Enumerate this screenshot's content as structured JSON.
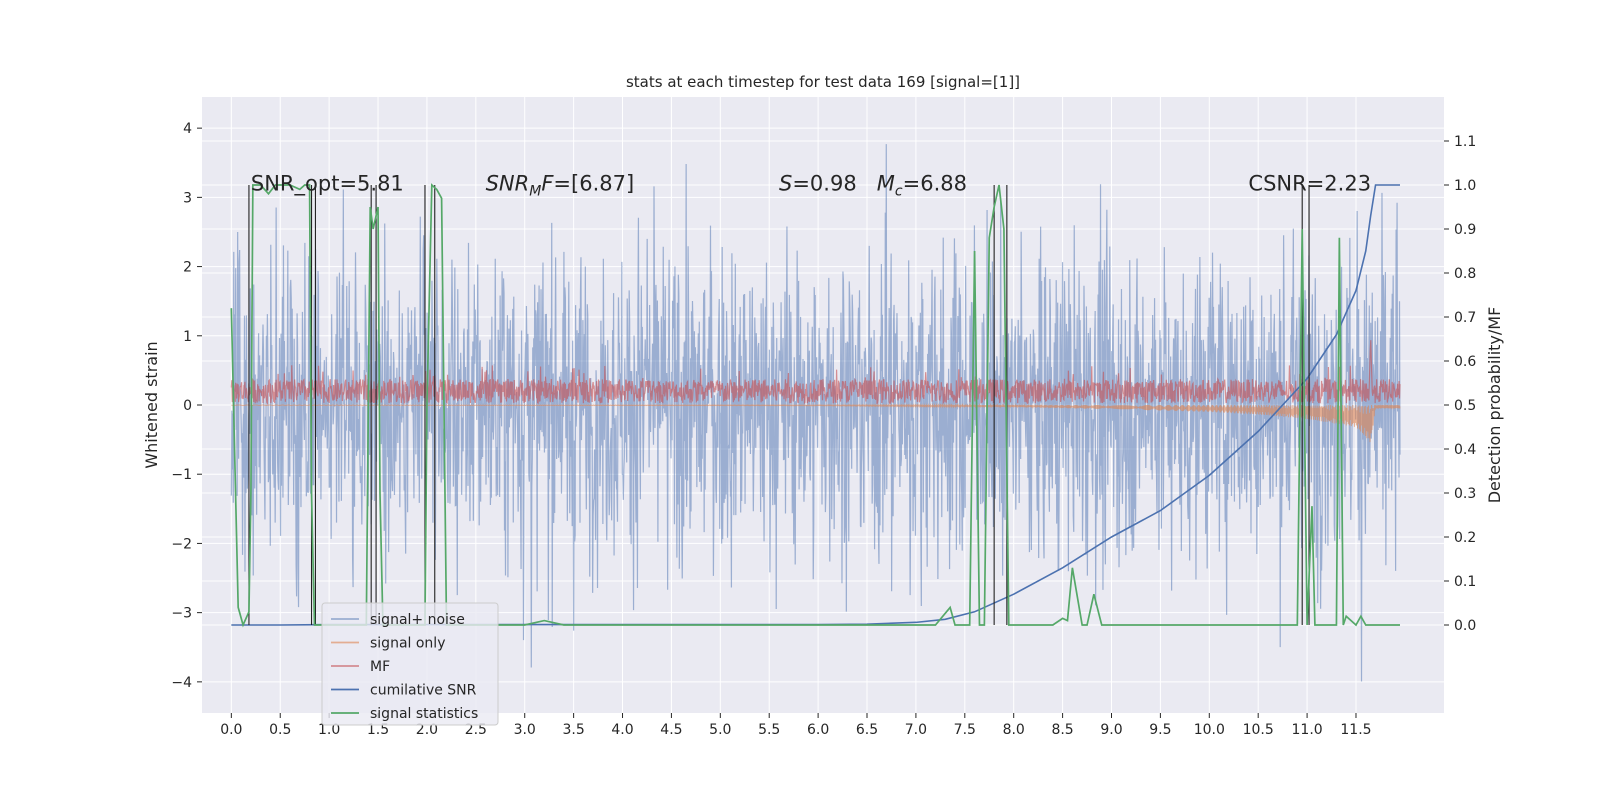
{
  "chart_data": {
    "type": "line",
    "title": "stats at each timestep for test data 169 [signal=[1]]",
    "xlabel": "",
    "ylabel": "Whitened strain",
    "ylabel_right": "Detection probability/MF",
    "xlim": [
      -0.3,
      12.4
    ],
    "ylim": [
      -4.45,
      4.45
    ],
    "ylim_right": [
      -0.2,
      1.2
    ],
    "x_ticks": [
      0.0,
      0.5,
      1.0,
      1.5,
      2.0,
      2.5,
      3.0,
      3.5,
      4.0,
      4.5,
      5.0,
      5.5,
      6.0,
      6.5,
      7.0,
      7.5,
      8.0,
      8.5,
      9.0,
      9.5,
      10.0,
      10.5,
      11.0,
      11.5
    ],
    "x_tick_labels": [
      "0.0",
      "0.5",
      "1.0",
      "1.5",
      "2.0",
      "2.5",
      "3.0",
      "3.5",
      "4.0",
      "4.5",
      "5.0",
      "5.5",
      "6.0",
      "6.5",
      "7.0",
      "7.5",
      "8.0",
      "8.5",
      "9.0",
      "9.5",
      "10.0",
      "10.5",
      "11.0",
      "11.5"
    ],
    "y_ticks": [
      -4,
      -3,
      -2,
      -1,
      0,
      1,
      2,
      3,
      4
    ],
    "y_tick_labels": [
      "−4",
      "−3",
      "−2",
      "−1",
      "0",
      "1",
      "2",
      "3",
      "4"
    ],
    "y_ticks_right": [
      0.0,
      0.1,
      0.2,
      0.3,
      0.4,
      0.5,
      0.6,
      0.7,
      0.8,
      0.9,
      1.0,
      1.1
    ],
    "y_tick_labels_right": [
      "0.0",
      "0.1",
      "0.2",
      "0.3",
      "0.4",
      "0.5",
      "0.6",
      "0.7",
      "0.8",
      "0.9",
      "1.0",
      "1.1"
    ],
    "grid": true,
    "legend_position": "lower-left",
    "annotations": [
      {
        "prefix": "SNR_opt",
        "sub": "",
        "suffix": "=5.81",
        "x": 0.2,
        "y": 3.2,
        "italic": false
      },
      {
        "prefix": "SNR",
        "sub": "M",
        "suffix": "F=[6.87]",
        "x": 2.6,
        "y": 3.2,
        "italic": true
      },
      {
        "prefix": "S",
        "sub": "",
        "suffix": "=0.98",
        "x": 5.6,
        "y": 3.2,
        "italic": true
      },
      {
        "prefix": "M",
        "sub": "c",
        "suffix": "=6.88",
        "x": 6.6,
        "y": 3.2,
        "italic": true
      },
      {
        "prefix": "CSNR",
        "sub": "",
        "suffix": "=2.23",
        "x": 10.4,
        "y": 3.2,
        "italic": false
      }
    ],
    "series": [
      {
        "name": "signal+ noise",
        "axis": "left",
        "color": "#4c72b0",
        "alpha": 0.5,
        "description": "noisy whitened strain, amplitude mostly within ±2.5 with spikes to ±4",
        "x_range": [
          0.0,
          11.95
        ],
        "amplitude_typical": 2.3,
        "amplitude_peak": 4.05
      },
      {
        "name": "signal only",
        "axis": "left",
        "color": "#dd8452",
        "alpha": 0.6,
        "description": "chirp signal growing in amplitude toward merger",
        "x_range": [
          0.0,
          11.95
        ],
        "envelope_x": [
          0.0,
          6.0,
          8.0,
          9.0,
          10.0,
          10.5,
          11.0,
          11.5,
          11.65,
          11.7,
          11.95
        ],
        "envelope_y": [
          0.005,
          0.01,
          0.03,
          0.06,
          0.1,
          0.14,
          0.2,
          0.32,
          0.55,
          0.05,
          0.05
        ]
      },
      {
        "name": "MF",
        "axis": "left",
        "color": "#c44e52",
        "alpha": 0.6,
        "description": "matched filter output, positive, around 0.2 ± 0.2, spike to 1.0 near 11.65",
        "x_range": [
          0.0,
          11.95
        ],
        "level_typical": 0.2,
        "spike_x": 11.65,
        "spike_y": 1.0
      },
      {
        "name": "cumilative SNR",
        "axis": "right",
        "color": "#4c72b0",
        "x": [
          0.0,
          0.5,
          1.0,
          2.0,
          3.0,
          4.0,
          5.0,
          6.0,
          6.5,
          7.0,
          7.3,
          7.6,
          8.0,
          8.5,
          9.0,
          9.5,
          10.0,
          10.5,
          11.0,
          11.3,
          11.5,
          11.6,
          11.65,
          11.7,
          11.95
        ],
        "y": [
          0.0,
          0.0,
          0.001,
          0.001,
          0.001,
          0.001,
          0.001,
          0.001,
          0.002,
          0.006,
          0.013,
          0.03,
          0.07,
          0.13,
          0.2,
          0.26,
          0.34,
          0.44,
          0.56,
          0.66,
          0.76,
          0.85,
          0.93,
          1.0,
          1.0
        ]
      },
      {
        "name": "signal statistics",
        "axis": "right",
        "color": "#55a868",
        "x": [
          0.0,
          0.07,
          0.12,
          0.18,
          0.2,
          0.22,
          0.25,
          0.3,
          0.38,
          0.45,
          0.5,
          0.6,
          0.7,
          0.75,
          0.8,
          0.82,
          0.85,
          1.38,
          1.42,
          1.45,
          1.5,
          1.52,
          1.55,
          1.98,
          2.0,
          2.05,
          2.1,
          2.15,
          2.2,
          3.0,
          3.2,
          3.4,
          6.0,
          6.7,
          6.9,
          7.2,
          7.35,
          7.4,
          7.45,
          7.55,
          7.6,
          7.65,
          7.7,
          7.75,
          7.8,
          7.85,
          7.9,
          7.95,
          8.0,
          8.4,
          8.5,
          8.55,
          8.6,
          8.7,
          8.75,
          8.82,
          8.9,
          9.0,
          10.9,
          10.95,
          11.0,
          11.05,
          11.08,
          11.12,
          11.15,
          11.3,
          11.33,
          11.37,
          11.4,
          11.5,
          11.55,
          11.6,
          11.65,
          11.95
        ],
        "y": [
          0.72,
          0.04,
          0.0,
          0.03,
          0.3,
          1.0,
          1.0,
          1.0,
          0.98,
          1.0,
          1.0,
          1.0,
          0.99,
          1.0,
          1.0,
          0.3,
          0.0,
          0.0,
          0.95,
          0.9,
          0.95,
          0.3,
          0.0,
          0.0,
          0.5,
          1.0,
          0.99,
          0.97,
          0.0,
          0.0,
          0.01,
          0.0,
          0.0,
          0.0,
          0.0,
          0.0,
          0.04,
          0.0,
          0.0,
          0.0,
          0.85,
          0.0,
          0.0,
          0.88,
          0.95,
          1.0,
          0.9,
          0.0,
          0.0,
          0.0,
          0.015,
          0.01,
          0.13,
          0.0,
          0.0,
          0.07,
          0.0,
          0.0,
          0.0,
          0.9,
          0.0,
          0.27,
          0.0,
          0.0,
          0.0,
          0.0,
          0.88,
          0.0,
          0.02,
          0.0,
          0.02,
          0.0,
          0.0,
          0.0
        ]
      },
      {
        "name": "",
        "axis": "right",
        "color": "#222222",
        "type": "vlines",
        "description": "thin dark vertical markers at detection boundaries",
        "x": [
          0.18,
          0.82,
          0.86,
          1.43,
          1.48,
          1.98,
          2.08,
          7.8,
          7.93,
          10.95,
          11.02
        ],
        "y_range": [
          0.0,
          1.0
        ]
      }
    ]
  }
}
